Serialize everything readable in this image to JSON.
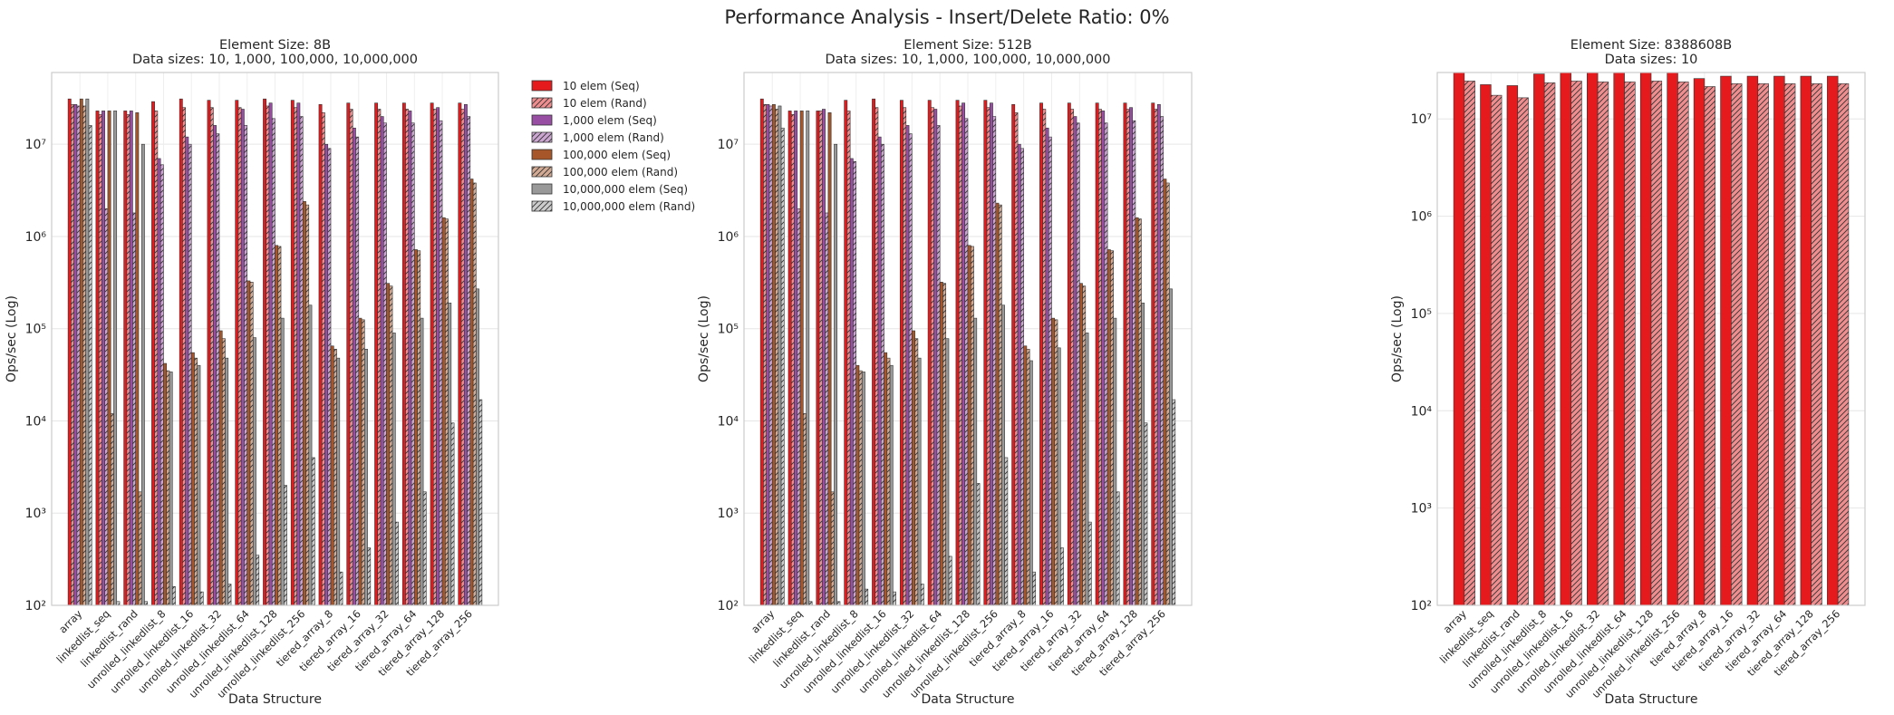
{
  "suptitle": "Performance Analysis - Insert/Delete Ratio: 0%",
  "chart_data": [
    {
      "type": "bar",
      "title": "Element Size: 8B",
      "subtitle": "Data sizes: 10, 1,000, 100,000, 10,000,000",
      "xlabel": "Data Structure",
      "ylabel": "Ops/sec (Log)",
      "yscale": "log",
      "ylim": [
        100,
        60000000
      ],
      "grid": true,
      "legend": "outside-right",
      "categories": [
        "array",
        "linkedlist_seq",
        "linkedlist_rand",
        "unrolled_linkedlist_8",
        "unrolled_linkedlist_16",
        "unrolled_linkedlist_32",
        "unrolled_linkedlist_64",
        "unrolled_linkedlist_128",
        "unrolled_linkedlist_256",
        "tiered_array_8",
        "tiered_array_16",
        "tiered_array_32",
        "tiered_array_64",
        "tiered_array_128",
        "tiered_array_256"
      ],
      "series": [
        {
          "name": "10 elem (Seq)",
          "color": "#e41a1c",
          "hatch": false,
          "values": [
            31000000,
            23000000,
            23000000,
            29000000,
            31000000,
            30000000,
            30000000,
            31000000,
            30000000,
            27000000,
            28000000,
            28000000,
            28000000,
            28000000,
            28000000
          ]
        },
        {
          "name": "10 elem (Rand)",
          "color": "#f08e8f",
          "hatch": true,
          "values": [
            27000000,
            21000000,
            21000000,
            23000000,
            25000000,
            25000000,
            25000000,
            26000000,
            25000000,
            22000000,
            24000000,
            24000000,
            24000000,
            24000000,
            24000000
          ]
        },
        {
          "name": "1,000 elem (Seq)",
          "color": "#984ea3",
          "hatch": false,
          "values": [
            27000000,
            23000000,
            23000000,
            7000000,
            12000000,
            16000000,
            24000000,
            28000000,
            28000000,
            10000000,
            15000000,
            20000000,
            23000000,
            25000000,
            27000000
          ]
        },
        {
          "name": "1,000 elem (Rand)",
          "color": "#cba6d1",
          "hatch": true,
          "values": [
            26000000,
            2000000,
            1800000,
            6000000,
            10000000,
            13000000,
            16000000,
            19000000,
            20000000,
            9000000,
            12000000,
            17000000,
            17000000,
            18000000,
            20000000
          ]
        },
        {
          "name": "100,000 elem (Seq)",
          "color": "#a65628",
          "hatch": false,
          "values": [
            31000000,
            23000000,
            22000000,
            42000,
            55000,
            95000,
            330000,
            800000,
            2400000,
            65000,
            130000,
            310000,
            720000,
            1600000,
            4200000
          ]
        },
        {
          "name": "100,000 elem (Rand)",
          "color": "#d3aa93",
          "hatch": true,
          "values": [
            26000000,
            12000,
            1700,
            35000,
            48000,
            78000,
            320000,
            780000,
            2200000,
            60000,
            125000,
            290000,
            700000,
            1550000,
            3800000
          ]
        },
        {
          "name": "10,000,000 elem (Seq)",
          "color": "#999999",
          "hatch": false,
          "values": [
            31000000,
            23000000,
            10000000,
            34000,
            40000,
            48000,
            80000,
            130000,
            180000,
            48000,
            60000,
            90000,
            130000,
            190000,
            270000
          ]
        },
        {
          "name": "10,000,000 elem (Rand)",
          "color": "#cccccc",
          "hatch": true,
          "values": [
            16000000,
            110,
            110,
            160,
            140,
            170,
            350,
            2000,
            4000,
            230,
            420,
            800,
            1700,
            9500,
            17000
          ]
        }
      ]
    },
    {
      "type": "bar",
      "title": "Element Size: 512B",
      "subtitle": "Data sizes: 10, 1,000, 100,000, 10,000,000",
      "xlabel": "Data Structure",
      "ylabel": "Ops/sec (Log)",
      "yscale": "log",
      "ylim": [
        100,
        60000000
      ],
      "grid": true,
      "categories": [
        "array",
        "linkedlist_seq",
        "linkedlist_rand",
        "unrolled_linkedlist_8",
        "unrolled_linkedlist_16",
        "unrolled_linkedlist_32",
        "unrolled_linkedlist_64",
        "unrolled_linkedlist_128",
        "unrolled_linkedlist_256",
        "tiered_array_8",
        "tiered_array_16",
        "tiered_array_32",
        "tiered_array_64",
        "tiered_array_128",
        "tiered_array_256"
      ],
      "series": [
        {
          "name": "10 elem (Seq)",
          "color": "#e41a1c",
          "hatch": false,
          "values": [
            31000000,
            23000000,
            23000000,
            30000000,
            31000000,
            30000000,
            30000000,
            30000000,
            30000000,
            27000000,
            28000000,
            28000000,
            28000000,
            28000000,
            28000000
          ]
        },
        {
          "name": "10 elem (Rand)",
          "color": "#f08e8f",
          "hatch": true,
          "values": [
            27000000,
            21000000,
            23000000,
            23000000,
            25000000,
            25000000,
            25000000,
            26000000,
            25000000,
            22000000,
            24000000,
            24000000,
            24000000,
            24000000,
            24000000
          ]
        },
        {
          "name": "1,000 elem (Seq)",
          "color": "#984ea3",
          "hatch": false,
          "values": [
            27000000,
            23000000,
            24000000,
            7000000,
            12000000,
            16000000,
            24000000,
            28000000,
            28000000,
            10000000,
            15000000,
            20000000,
            23000000,
            25000000,
            27000000
          ]
        },
        {
          "name": "1,000 elem (Rand)",
          "color": "#cba6d1",
          "hatch": true,
          "values": [
            26000000,
            2000000,
            1800000,
            6500000,
            10000000,
            13000000,
            16000000,
            19000000,
            20000000,
            9000000,
            12000000,
            17000000,
            17000000,
            18000000,
            20000000
          ]
        },
        {
          "name": "100,000 elem (Seq)",
          "color": "#a65628",
          "hatch": false,
          "values": [
            27000000,
            23000000,
            22000000,
            40000,
            55000,
            95000,
            320000,
            800000,
            2300000,
            65000,
            130000,
            310000,
            720000,
            1600000,
            4200000
          ]
        },
        {
          "name": "100,000 elem (Rand)",
          "color": "#d3aa93",
          "hatch": true,
          "values": [
            24000000,
            12000,
            1700,
            35000,
            48000,
            78000,
            310000,
            780000,
            2200000,
            60000,
            125000,
            290000,
            700000,
            1550000,
            3800000
          ]
        },
        {
          "name": "10,000,000 elem (Seq)",
          "color": "#999999",
          "hatch": false,
          "values": [
            26000000,
            23000000,
            10000000,
            34000,
            40000,
            48000,
            78000,
            130000,
            180000,
            45000,
            62000,
            90000,
            130000,
            190000,
            270000
          ]
        },
        {
          "name": "10,000,000 elem (Rand)",
          "color": "#cccccc",
          "hatch": true,
          "values": [
            15000000,
            110,
            110,
            150,
            140,
            170,
            340,
            2100,
            4000,
            230,
            420,
            800,
            1700,
            9500,
            17000
          ]
        }
      ]
    },
    {
      "type": "bar",
      "title": "Element Size: 8388608B",
      "subtitle": "Data sizes: 10",
      "xlabel": "Data Structure",
      "ylabel": "Ops/sec (Log)",
      "yscale": "log",
      "ylim": [
        100,
        30000000
      ],
      "grid": true,
      "categories": [
        "array",
        "linkedlist_seq",
        "linkedlist_rand",
        "unrolled_linkedlist_8",
        "unrolled_linkedlist_16",
        "unrolled_linkedlist_32",
        "unrolled_linkedlist_64",
        "unrolled_linkedlist_128",
        "unrolled_linkedlist_256",
        "tiered_array_8",
        "tiered_array_16",
        "tiered_array_32",
        "tiered_array_64",
        "tiered_array_128",
        "tiered_array_256"
      ],
      "series": [
        {
          "name": "10 elem (Seq)",
          "color": "#e41a1c",
          "hatch": false,
          "values": [
            30000000,
            22500000,
            22000000,
            29000000,
            30000000,
            30000000,
            30000000,
            30000000,
            30000000,
            26000000,
            27500000,
            27500000,
            27500000,
            27500000,
            27500000
          ]
        },
        {
          "name": "10 elem (Rand)",
          "color": "#f08e8f",
          "hatch": true,
          "values": [
            24500000,
            17500000,
            16500000,
            23500000,
            24500000,
            24000000,
            24000000,
            24500000,
            24000000,
            21500000,
            23000000,
            23000000,
            23000000,
            23000000,
            23000000
          ]
        }
      ]
    }
  ]
}
